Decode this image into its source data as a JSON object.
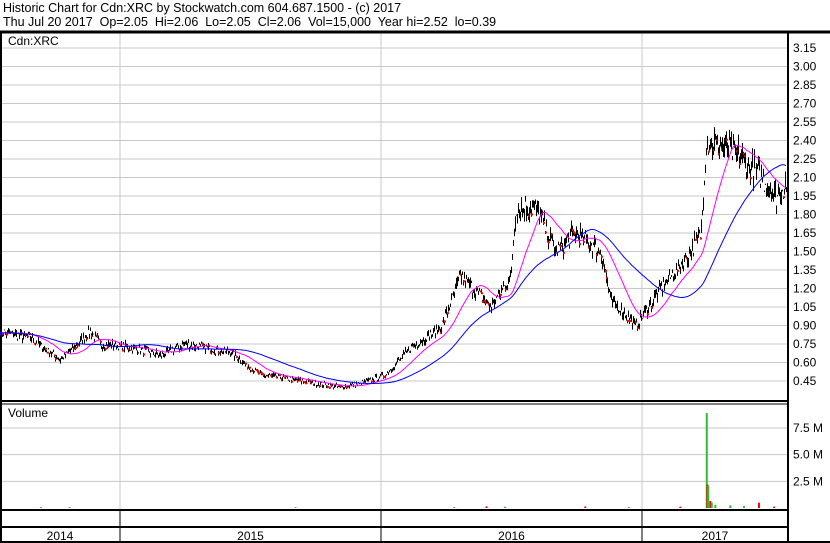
{
  "header": {
    "title": "Historic Chart for Cdn:XRC by Stockwatch.com 604.687.1500 - (c) 2017",
    "quote": "Thu Jul 20 2017  Op=2.05  Hi=2.06  Lo=2.05  Cl=2.06  Vol=15,000  Year hi=2.52  lo=0.39"
  },
  "chart_data": [
    {
      "type": "line",
      "title": "Cdn:XRC",
      "ylim": [
        0.39,
        3.25
      ],
      "y_ticks": [
        "3.15",
        "3.00",
        "2.85",
        "2.70",
        "2.55",
        "2.40",
        "2.25",
        "2.10",
        "1.95",
        "1.80",
        "1.65",
        "1.50",
        "1.35",
        "1.20",
        "1.05",
        "0.90",
        "0.75",
        "0.60",
        "0.45"
      ],
      "x_ticks": [
        "2014",
        "2015",
        "2016",
        "2017"
      ],
      "grid": true,
      "colors": {
        "price": "#000000",
        "down_close": "#ff0000",
        "ma_short": "#ff00ff",
        "ma_long": "#0000ff"
      },
      "series": [
        {
          "values": [
            [
              "2014-07-16",
              0.85
            ],
            [
              "2014-08-27",
              0.8
            ],
            [
              "2014-10-08",
              0.62
            ],
            [
              "2014-11-19",
              0.85
            ],
            [
              "2014-12-03",
              0.75
            ],
            [
              "2015-01-14",
              0.72
            ],
            [
              "2015-02-25",
              0.66
            ],
            [
              "2015-04-01",
              0.75
            ],
            [
              "2015-06-03",
              0.68
            ],
            [
              "2015-07-15",
              0.5
            ],
            [
              "2015-09-09",
              0.45
            ],
            [
              "2015-11-04",
              0.4
            ],
            [
              "2015-12-02",
              0.43
            ],
            [
              "2016-01-06",
              0.5
            ],
            [
              "2016-02-10",
              0.72
            ],
            [
              "2016-03-23",
              0.88
            ],
            [
              "2016-04-20",
              1.3
            ],
            [
              "2016-06-01",
              1.05
            ],
            [
              "2016-06-29",
              1.3
            ],
            [
              "2016-07-06",
              1.85
            ],
            [
              "2016-08-03",
              1.85
            ],
            [
              "2016-08-31",
              1.5
            ],
            [
              "2016-09-28",
              1.65
            ],
            [
              "2016-11-02",
              1.5
            ],
            [
              "2016-11-16",
              1.1
            ],
            [
              "2016-12-21",
              0.9
            ],
            [
              "2017-01-25",
              1.2
            ],
            [
              "2017-03-08",
              1.5
            ],
            [
              "2017-03-22",
              1.65
            ],
            [
              "2017-03-29",
              2.4
            ],
            [
              "2017-05-10",
              2.3
            ],
            [
              "2017-06-14",
              2.1
            ],
            [
              "2017-07-05",
              1.95
            ],
            [
              "2017-07-20",
              2.06
            ]
          ]
        }
      ]
    },
    {
      "type": "bar",
      "title": "Volume",
      "ylim": [
        0,
        9500000
      ],
      "y_ticks": [
        "7.5 M",
        "5.0 M",
        "2.5 M"
      ],
      "colors": {
        "up": "#33bb33",
        "down": "#ff0000"
      },
      "values": [
        [
          "2014-09-10",
          60000,
          "down"
        ],
        [
          "2014-10-20",
          80000,
          "up"
        ],
        [
          "2015-09-01",
          50000,
          "down"
        ],
        [
          "2016-04-10",
          90000,
          "up"
        ],
        [
          "2016-05-25",
          150000,
          "down"
        ],
        [
          "2016-06-20",
          120000,
          "up"
        ],
        [
          "2016-10-10",
          140000,
          "down"
        ],
        [
          "2016-12-10",
          100000,
          "up"
        ],
        [
          "2017-02-20",
          120000,
          "down"
        ],
        [
          "2017-03-29",
          8900000,
          "up"
        ],
        [
          "2017-03-30",
          2200000,
          "down"
        ],
        [
          "2017-03-31",
          2100000,
          "up"
        ],
        [
          "2017-04-03",
          650000,
          "down"
        ],
        [
          "2017-04-05",
          500000,
          "up"
        ],
        [
          "2017-04-10",
          300000,
          "up"
        ],
        [
          "2017-05-01",
          250000,
          "up"
        ],
        [
          "2017-05-20",
          200000,
          "up"
        ],
        [
          "2017-06-10",
          500000,
          "down"
        ],
        [
          "2017-07-01",
          120000,
          "down"
        ]
      ]
    }
  ]
}
